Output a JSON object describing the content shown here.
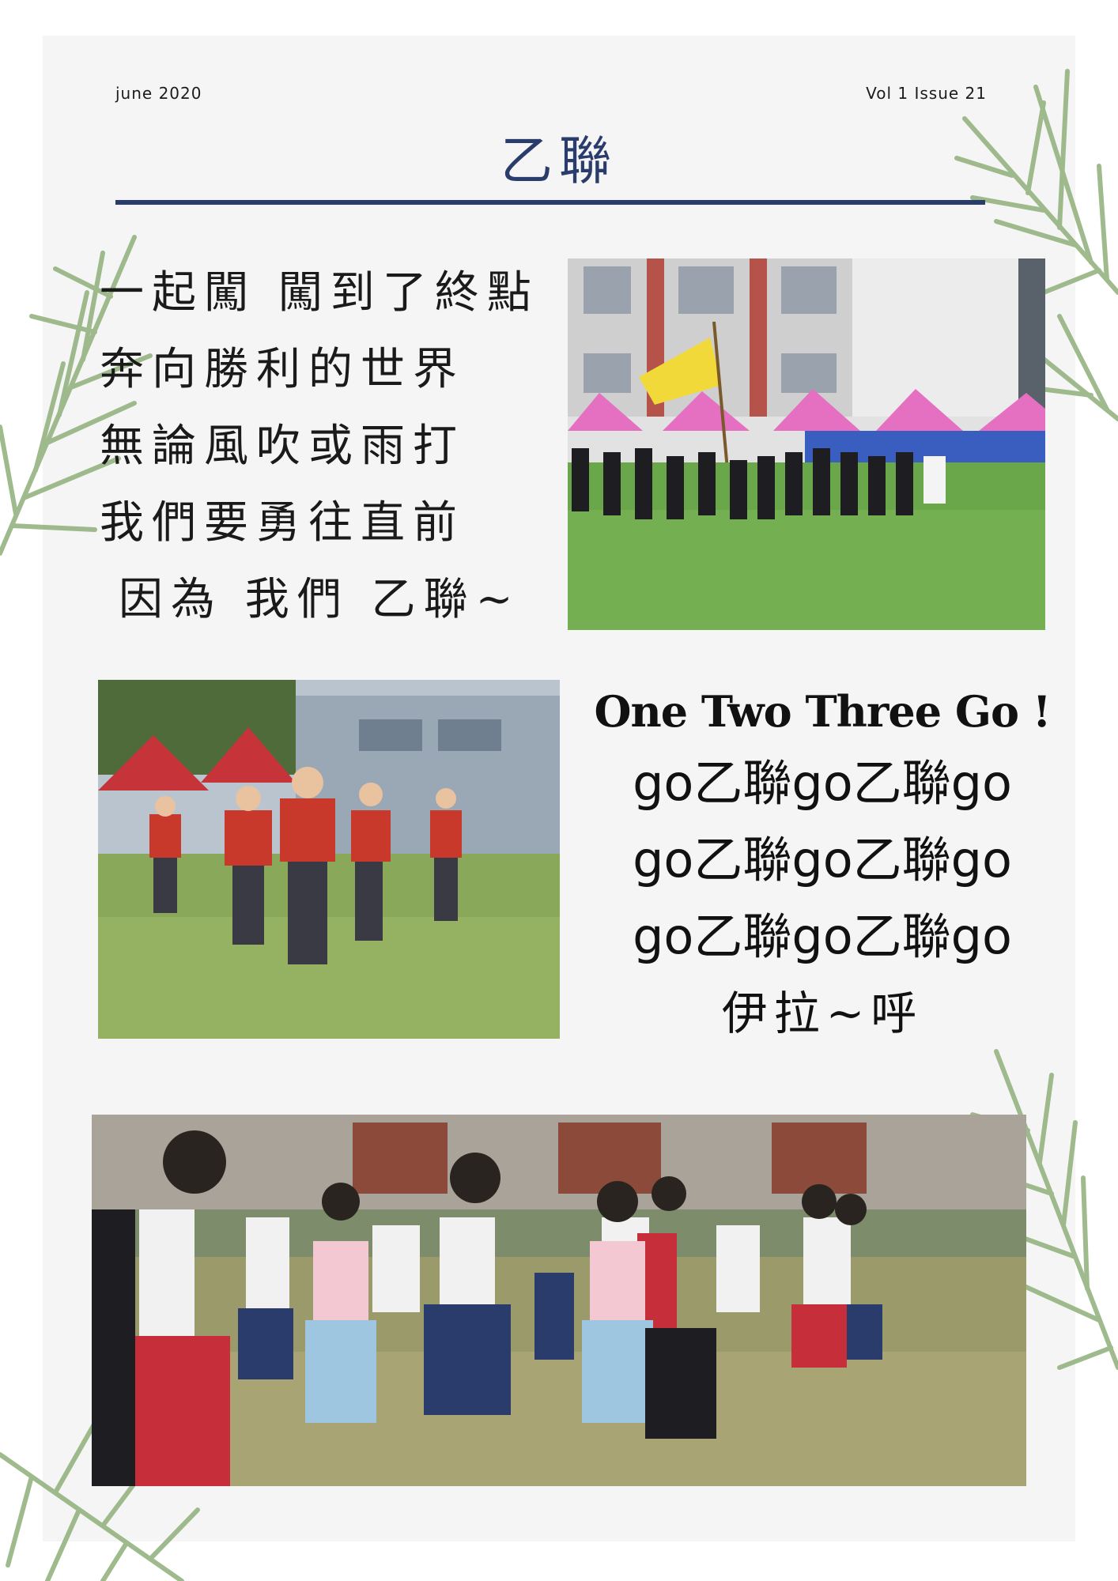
{
  "header": {
    "date": "june 2020",
    "issue": "Vol 1 Issue 21",
    "title": "乙聯"
  },
  "verse": {
    "lines": [
      "一起闖 闖到了終點",
      "奔向勝利的世界",
      "無論風吹或雨打",
      "我們要勇往直前",
      "因為 我們 乙聯~"
    ]
  },
  "chant": {
    "heading": "One Two Three Go !",
    "lines": [
      "go乙聯go乙聯go",
      "go乙聯go乙聯go",
      "go乙聯go乙聯go"
    ],
    "ending": "伊拉~呼"
  },
  "palette": {
    "title_color": "#2a3c6b",
    "rule_color": "#2a3c6b",
    "sheet_background": "#f5f5f5",
    "leaf_color": "#8fb07a"
  }
}
